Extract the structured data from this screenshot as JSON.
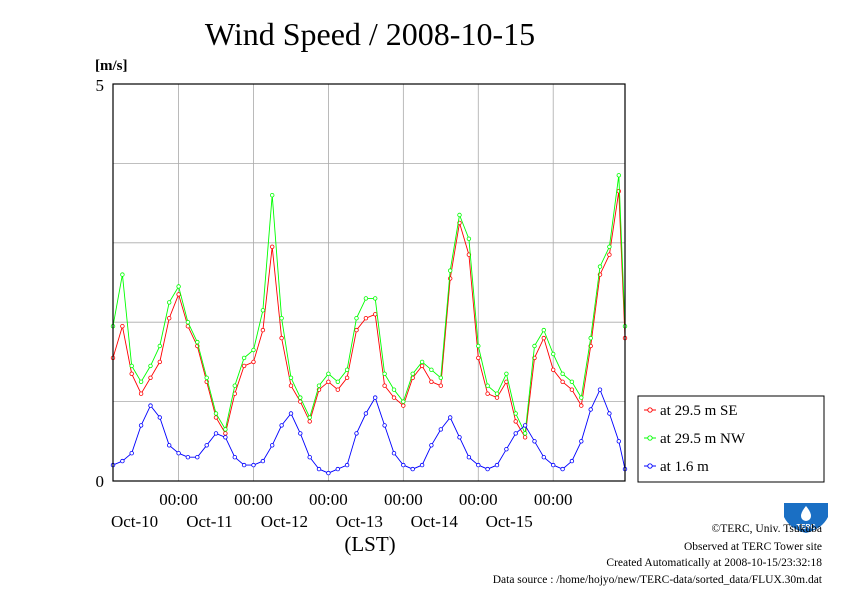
{
  "chart_data": {
    "type": "line",
    "title": "Wind Speed / 2008-10-15",
    "ylabel": "[m/s]",
    "xlabel": "(LST)",
    "ylim": [
      0,
      5
    ],
    "y_ticks": [
      "0",
      "5"
    ],
    "xlim": [
      "2008-10-09 03:00",
      "2008-10-15 23:00"
    ],
    "x_ticks": [
      {
        "time": "00:00",
        "date": "Oct-10"
      },
      {
        "time": "00:00",
        "date": "Oct-11"
      },
      {
        "time": "00:00",
        "date": "Oct-12"
      },
      {
        "time": "00:00",
        "date": "Oct-13"
      },
      {
        "time": "00:00",
        "date": "Oct-14"
      },
      {
        "time": "00:00",
        "date": "Oct-15"
      }
    ],
    "grid": true,
    "legend_position": "right",
    "series": [
      {
        "name": "at 29.5 m SE",
        "color": "#ff0000",
        "x": [
          "2008-10-09 03:00",
          "2008-10-09 06:00",
          "2008-10-09 09:00",
          "2008-10-09 12:00",
          "2008-10-09 15:00",
          "2008-10-09 18:00",
          "2008-10-09 21:00",
          "2008-10-10 00:00",
          "2008-10-10 03:00",
          "2008-10-10 06:00",
          "2008-10-10 09:00",
          "2008-10-10 12:00",
          "2008-10-10 15:00",
          "2008-10-10 18:00",
          "2008-10-10 21:00",
          "2008-10-11 00:00",
          "2008-10-11 03:00",
          "2008-10-11 06:00",
          "2008-10-11 09:00",
          "2008-10-11 12:00",
          "2008-10-11 15:00",
          "2008-10-11 18:00",
          "2008-10-11 21:00",
          "2008-10-12 00:00",
          "2008-10-12 03:00",
          "2008-10-12 06:00",
          "2008-10-12 09:00",
          "2008-10-12 12:00",
          "2008-10-12 15:00",
          "2008-10-12 18:00",
          "2008-10-12 21:00",
          "2008-10-13 00:00",
          "2008-10-13 03:00",
          "2008-10-13 06:00",
          "2008-10-13 09:00",
          "2008-10-13 12:00",
          "2008-10-13 15:00",
          "2008-10-13 18:00",
          "2008-10-13 21:00",
          "2008-10-14 00:00",
          "2008-10-14 03:00",
          "2008-10-14 06:00",
          "2008-10-14 09:00",
          "2008-10-14 12:00",
          "2008-10-14 15:00",
          "2008-10-14 18:00",
          "2008-10-14 21:00",
          "2008-10-15 00:00",
          "2008-10-15 03:00",
          "2008-10-15 06:00",
          "2008-10-15 09:00",
          "2008-10-15 12:00",
          "2008-10-15 15:00",
          "2008-10-15 18:00",
          "2008-10-15 21:00",
          "2008-10-15 23:00"
        ],
        "values": [
          1.55,
          1.95,
          1.35,
          1.1,
          1.3,
          1.5,
          2.05,
          2.35,
          1.95,
          1.7,
          1.25,
          0.8,
          0.6,
          1.1,
          1.45,
          1.5,
          1.9,
          2.95,
          1.8,
          1.2,
          1.0,
          0.75,
          1.15,
          1.25,
          1.15,
          1.3,
          1.9,
          2.05,
          2.1,
          1.2,
          1.05,
          0.95,
          1.3,
          1.45,
          1.25,
          1.2,
          2.55,
          3.25,
          2.85,
          1.55,
          1.1,
          1.05,
          1.25,
          0.75,
          0.55,
          1.55,
          1.8,
          1.4,
          1.25,
          1.15,
          0.95,
          1.7,
          2.6,
          2.85,
          3.65,
          1.8
        ]
      },
      {
        "name": "at 29.5 m NW",
        "color": "#00ff00",
        "x": [
          "2008-10-09 03:00",
          "2008-10-09 06:00",
          "2008-10-09 09:00",
          "2008-10-09 12:00",
          "2008-10-09 15:00",
          "2008-10-09 18:00",
          "2008-10-09 21:00",
          "2008-10-10 00:00",
          "2008-10-10 03:00",
          "2008-10-10 06:00",
          "2008-10-10 09:00",
          "2008-10-10 12:00",
          "2008-10-10 15:00",
          "2008-10-10 18:00",
          "2008-10-10 21:00",
          "2008-10-11 00:00",
          "2008-10-11 03:00",
          "2008-10-11 06:00",
          "2008-10-11 09:00",
          "2008-10-11 12:00",
          "2008-10-11 15:00",
          "2008-10-11 18:00",
          "2008-10-11 21:00",
          "2008-10-12 00:00",
          "2008-10-12 03:00",
          "2008-10-12 06:00",
          "2008-10-12 09:00",
          "2008-10-12 12:00",
          "2008-10-12 15:00",
          "2008-10-12 18:00",
          "2008-10-12 21:00",
          "2008-10-13 00:00",
          "2008-10-13 03:00",
          "2008-10-13 06:00",
          "2008-10-13 09:00",
          "2008-10-13 12:00",
          "2008-10-13 15:00",
          "2008-10-13 18:00",
          "2008-10-13 21:00",
          "2008-10-14 00:00",
          "2008-10-14 03:00",
          "2008-10-14 06:00",
          "2008-10-14 09:00",
          "2008-10-14 12:00",
          "2008-10-14 15:00",
          "2008-10-14 18:00",
          "2008-10-14 21:00",
          "2008-10-15 00:00",
          "2008-10-15 03:00",
          "2008-10-15 06:00",
          "2008-10-15 09:00",
          "2008-10-15 12:00",
          "2008-10-15 15:00",
          "2008-10-15 18:00",
          "2008-10-15 21:00",
          "2008-10-15 23:00"
        ],
        "values": [
          1.95,
          2.6,
          1.45,
          1.25,
          1.45,
          1.7,
          2.25,
          2.45,
          2.0,
          1.75,
          1.3,
          0.85,
          0.65,
          1.2,
          1.55,
          1.65,
          2.15,
          3.6,
          2.05,
          1.3,
          1.05,
          0.8,
          1.2,
          1.35,
          1.25,
          1.4,
          2.05,
          2.3,
          2.3,
          1.35,
          1.15,
          1.0,
          1.35,
          1.5,
          1.4,
          1.3,
          2.65,
          3.35,
          3.05,
          1.7,
          1.2,
          1.1,
          1.35,
          0.85,
          0.6,
          1.7,
          1.9,
          1.6,
          1.35,
          1.25,
          1.05,
          1.8,
          2.7,
          2.95,
          3.85,
          1.95
        ]
      },
      {
        "name": "at 1.6 m",
        "color": "#0000ff",
        "x": [
          "2008-10-09 03:00",
          "2008-10-09 06:00",
          "2008-10-09 09:00",
          "2008-10-09 12:00",
          "2008-10-09 15:00",
          "2008-10-09 18:00",
          "2008-10-09 21:00",
          "2008-10-10 00:00",
          "2008-10-10 03:00",
          "2008-10-10 06:00",
          "2008-10-10 09:00",
          "2008-10-10 12:00",
          "2008-10-10 15:00",
          "2008-10-10 18:00",
          "2008-10-10 21:00",
          "2008-10-11 00:00",
          "2008-10-11 03:00",
          "2008-10-11 06:00",
          "2008-10-11 09:00",
          "2008-10-11 12:00",
          "2008-10-11 15:00",
          "2008-10-11 18:00",
          "2008-10-11 21:00",
          "2008-10-12 00:00",
          "2008-10-12 03:00",
          "2008-10-12 06:00",
          "2008-10-12 09:00",
          "2008-10-12 12:00",
          "2008-10-12 15:00",
          "2008-10-12 18:00",
          "2008-10-12 21:00",
          "2008-10-13 00:00",
          "2008-10-13 03:00",
          "2008-10-13 06:00",
          "2008-10-13 09:00",
          "2008-10-13 12:00",
          "2008-10-13 15:00",
          "2008-10-13 18:00",
          "2008-10-13 21:00",
          "2008-10-14 00:00",
          "2008-10-14 03:00",
          "2008-10-14 06:00",
          "2008-10-14 09:00",
          "2008-10-14 12:00",
          "2008-10-14 15:00",
          "2008-10-14 18:00",
          "2008-10-14 21:00",
          "2008-10-15 00:00",
          "2008-10-15 03:00",
          "2008-10-15 06:00",
          "2008-10-15 09:00",
          "2008-10-15 12:00",
          "2008-10-15 15:00",
          "2008-10-15 18:00",
          "2008-10-15 21:00",
          "2008-10-15 23:00"
        ],
        "values": [
          0.2,
          0.25,
          0.35,
          0.7,
          0.95,
          0.8,
          0.45,
          0.35,
          0.3,
          0.3,
          0.45,
          0.6,
          0.55,
          0.3,
          0.2,
          0.2,
          0.25,
          0.45,
          0.7,
          0.85,
          0.6,
          0.3,
          0.15,
          0.1,
          0.15,
          0.2,
          0.6,
          0.85,
          1.05,
          0.7,
          0.35,
          0.2,
          0.15,
          0.2,
          0.45,
          0.65,
          0.8,
          0.55,
          0.3,
          0.2,
          0.15,
          0.2,
          0.4,
          0.6,
          0.7,
          0.5,
          0.3,
          0.2,
          0.15,
          0.25,
          0.5,
          0.9,
          1.15,
          0.85,
          0.5,
          0.15
        ]
      }
    ]
  },
  "credits": {
    "copyright": "©TERC, Univ. Tsukuba",
    "observed": "Observed at TERC Tower site",
    "created": "Created Automatically at 2008-10-15/23:32:18",
    "source": "Data source : /home/hojyo/new/TERC-data/sorted_data/FLUX.30m.dat",
    "logo_text": "TERC"
  }
}
